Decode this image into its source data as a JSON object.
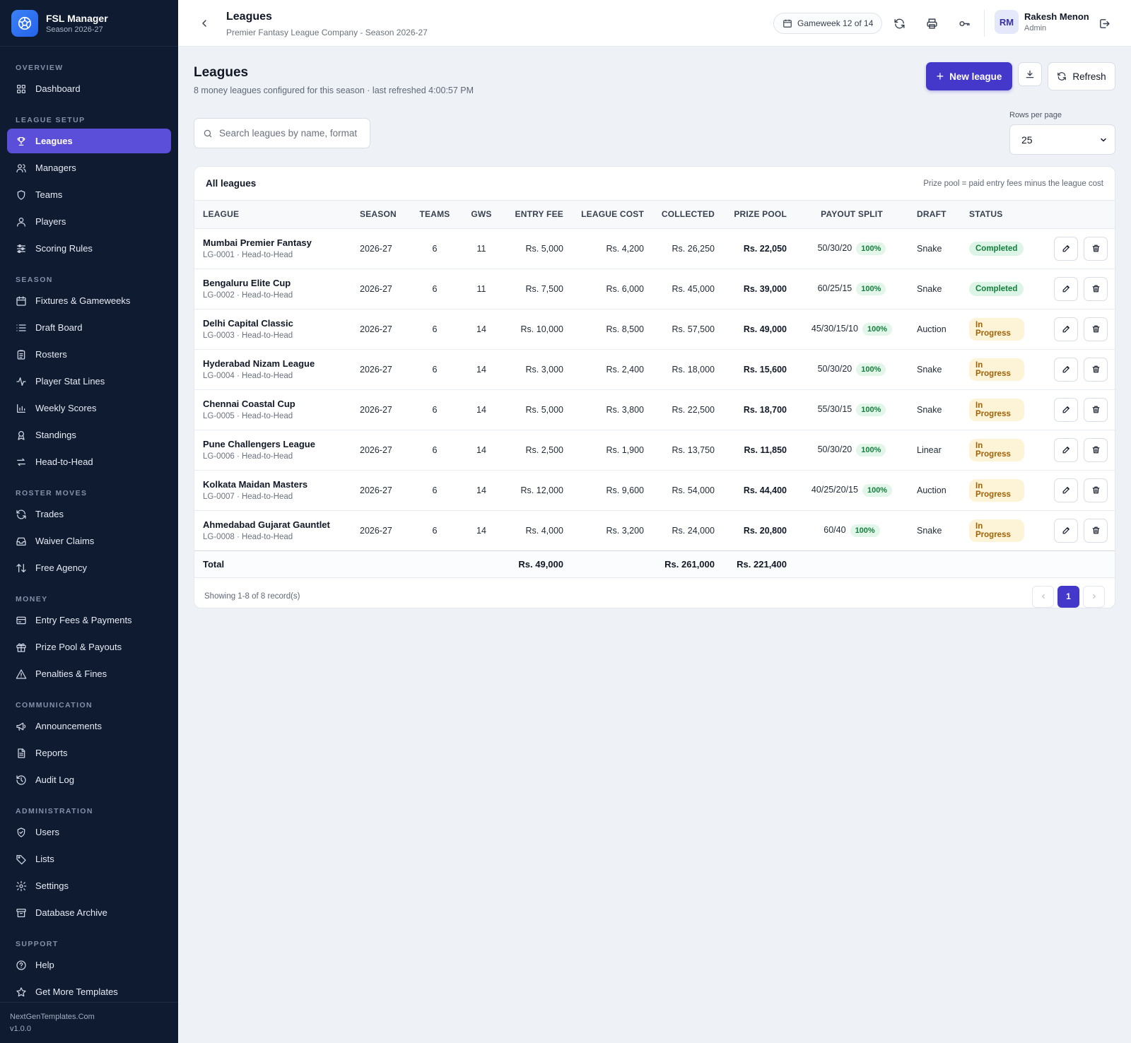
{
  "brand": {
    "title": "FSL Manager",
    "subtitle": "Season 2026-27"
  },
  "sidebar": {
    "sections": [
      {
        "label": "OVERVIEW",
        "items": [
          {
            "label": "Dashboard",
            "icon": "grid-icon"
          }
        ]
      },
      {
        "label": "LEAGUE SETUP",
        "items": [
          {
            "label": "Leagues",
            "icon": "trophy-icon",
            "active": true
          },
          {
            "label": "Managers",
            "icon": "users-icon"
          },
          {
            "label": "Teams",
            "icon": "shield-icon"
          },
          {
            "label": "Players",
            "icon": "user-icon"
          },
          {
            "label": "Scoring Rules",
            "icon": "sliders-icon"
          }
        ]
      },
      {
        "label": "SEASON",
        "items": [
          {
            "label": "Fixtures & Gameweeks",
            "icon": "calendar-icon"
          },
          {
            "label": "Draft Board",
            "icon": "list-icon"
          },
          {
            "label": "Rosters",
            "icon": "clipboard-icon"
          },
          {
            "label": "Player Stat Lines",
            "icon": "activity-icon"
          },
          {
            "label": "Weekly Scores",
            "icon": "bar-chart-icon"
          },
          {
            "label": "Standings",
            "icon": "award-icon"
          },
          {
            "label": "Head-to-Head",
            "icon": "swap-icon"
          }
        ]
      },
      {
        "label": "ROSTER MOVES",
        "items": [
          {
            "label": "Trades",
            "icon": "refresh-icon"
          },
          {
            "label": "Waiver Claims",
            "icon": "inbox-icon"
          },
          {
            "label": "Free Agency",
            "icon": "arrows-updown-icon"
          }
        ]
      },
      {
        "label": "MONEY",
        "items": [
          {
            "label": "Entry Fees & Payments",
            "icon": "credit-card-icon"
          },
          {
            "label": "Prize Pool & Payouts",
            "icon": "gift-icon"
          },
          {
            "label": "Penalties & Fines",
            "icon": "alert-triangle-icon"
          }
        ]
      },
      {
        "label": "COMMUNICATION",
        "items": [
          {
            "label": "Announcements",
            "icon": "megaphone-icon"
          },
          {
            "label": "Reports",
            "icon": "file-text-icon"
          },
          {
            "label": "Audit Log",
            "icon": "history-icon"
          }
        ]
      },
      {
        "label": "ADMINISTRATION",
        "items": [
          {
            "label": "Users",
            "icon": "shield-check-icon"
          },
          {
            "label": "Lists",
            "icon": "tag-icon"
          },
          {
            "label": "Settings",
            "icon": "gear-icon"
          },
          {
            "label": "Database Archive",
            "icon": "archive-icon"
          }
        ]
      },
      {
        "label": "SUPPORT",
        "items": [
          {
            "label": "Help",
            "icon": "help-circle-icon"
          },
          {
            "label": "Get More Templates",
            "icon": "star-icon"
          }
        ]
      }
    ],
    "footer_site": "NextGenTemplates.Com",
    "footer_version": "v1.0.0"
  },
  "topbar": {
    "title": "Leagues",
    "subtitle": "Premier Fantasy League Company - Season 2026-27",
    "gameweek": "Gameweek 12 of 14",
    "user_initials": "RM",
    "user_name": "Rakesh Menon",
    "user_role": "Admin"
  },
  "page": {
    "title": "Leagues",
    "subtitle": "8 money leagues configured for this season · last refreshed 4:00:57 PM",
    "new_button": "New league",
    "refresh_button": "Refresh",
    "search_placeholder": "Search leagues by name, format",
    "rows_per_page_label": "Rows per page",
    "rows_per_page": "25"
  },
  "table": {
    "title": "All leagues",
    "note": "Prize pool = paid entry fees minus the league cost",
    "columns": [
      "LEAGUE",
      "SEASON",
      "TEAMS",
      "GWS",
      "ENTRY FEE",
      "LEAGUE COST",
      "COLLECTED",
      "PRIZE POOL",
      "PAYOUT SPLIT",
      "DRAFT",
      "STATUS",
      ""
    ],
    "rows": [
      {
        "name": "Mumbai Premier Fantasy",
        "meta": "LG-0001 · Head-to-Head",
        "season": "2026-27",
        "teams": "6",
        "gws": "11",
        "entry_fee": "Rs. 5,000",
        "league_cost": "Rs. 4,200",
        "collected": "Rs. 26,250",
        "prize_pool": "Rs. 22,050",
        "split": "50/30/20",
        "split_pct": "100%",
        "draft": "Snake",
        "status": "Completed"
      },
      {
        "name": "Bengaluru Elite Cup",
        "meta": "LG-0002 · Head-to-Head",
        "season": "2026-27",
        "teams": "6",
        "gws": "11",
        "entry_fee": "Rs. 7,500",
        "league_cost": "Rs. 6,000",
        "collected": "Rs. 45,000",
        "prize_pool": "Rs. 39,000",
        "split": "60/25/15",
        "split_pct": "100%",
        "draft": "Snake",
        "status": "Completed"
      },
      {
        "name": "Delhi Capital Classic",
        "meta": "LG-0003 · Head-to-Head",
        "season": "2026-27",
        "teams": "6",
        "gws": "14",
        "entry_fee": "Rs. 10,000",
        "league_cost": "Rs. 8,500",
        "collected": "Rs. 57,500",
        "prize_pool": "Rs. 49,000",
        "split": "45/30/15/10",
        "split_pct": "100%",
        "draft": "Auction",
        "status": "In Progress"
      },
      {
        "name": "Hyderabad Nizam League",
        "meta": "LG-0004 · Head-to-Head",
        "season": "2026-27",
        "teams": "6",
        "gws": "14",
        "entry_fee": "Rs. 3,000",
        "league_cost": "Rs. 2,400",
        "collected": "Rs. 18,000",
        "prize_pool": "Rs. 15,600",
        "split": "50/30/20",
        "split_pct": "100%",
        "draft": "Snake",
        "status": "In Progress"
      },
      {
        "name": "Chennai Coastal Cup",
        "meta": "LG-0005 · Head-to-Head",
        "season": "2026-27",
        "teams": "6",
        "gws": "14",
        "entry_fee": "Rs. 5,000",
        "league_cost": "Rs. 3,800",
        "collected": "Rs. 22,500",
        "prize_pool": "Rs. 18,700",
        "split": "55/30/15",
        "split_pct": "100%",
        "draft": "Snake",
        "status": "In Progress"
      },
      {
        "name": "Pune Challengers League",
        "meta": "LG-0006 · Head-to-Head",
        "season": "2026-27",
        "teams": "6",
        "gws": "14",
        "entry_fee": "Rs. 2,500",
        "league_cost": "Rs. 1,900",
        "collected": "Rs. 13,750",
        "prize_pool": "Rs. 11,850",
        "split": "50/30/20",
        "split_pct": "100%",
        "draft": "Linear",
        "status": "In Progress"
      },
      {
        "name": "Kolkata Maidan Masters",
        "meta": "LG-0007 · Head-to-Head",
        "season": "2026-27",
        "teams": "6",
        "gws": "14",
        "entry_fee": "Rs. 12,000",
        "league_cost": "Rs. 9,600",
        "collected": "Rs. 54,000",
        "prize_pool": "Rs. 44,400",
        "split": "40/25/20/15",
        "split_pct": "100%",
        "draft": "Auction",
        "status": "In Progress"
      },
      {
        "name": "Ahmedabad Gujarat Gauntlet",
        "meta": "LG-0008 · Head-to-Head",
        "season": "2026-27",
        "teams": "6",
        "gws": "14",
        "entry_fee": "Rs. 4,000",
        "league_cost": "Rs. 3,200",
        "collected": "Rs. 24,000",
        "prize_pool": "Rs. 20,800",
        "split": "60/40",
        "split_pct": "100%",
        "draft": "Snake",
        "status": "In Progress"
      }
    ],
    "total": {
      "label": "Total",
      "entry_fee": "Rs. 49,000",
      "collected": "Rs. 261,000",
      "prize_pool": "Rs. 221,400"
    },
    "showing": "Showing 1-8 of 8 record(s)",
    "current_page": "1",
    "status_colors": {
      "Completed": {
        "bg": "#dcf5e6",
        "fg": "#15803d"
      },
      "In Progress": {
        "bg": "#fdf3d6",
        "fg": "#a16207"
      }
    }
  },
  "colors": {
    "accent": "#4338ca",
    "sidebar_bg": "#0f1b31",
    "active_nav": "#5b4fd9"
  }
}
